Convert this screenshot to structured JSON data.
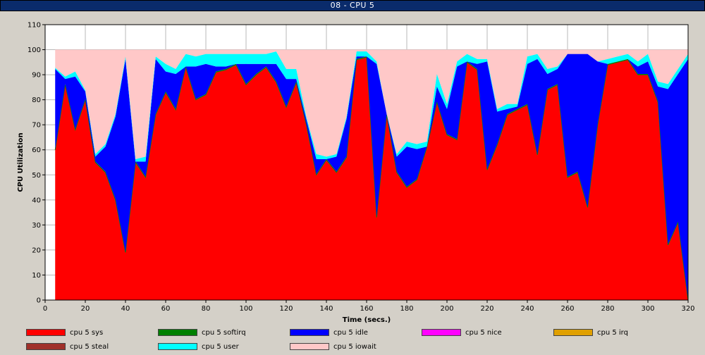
{
  "window": {
    "title": "08 - CPU 5"
  },
  "chart_data": {
    "type": "area",
    "title": "",
    "xlabel": "Time (secs.)",
    "ylabel": "CPU Utilization",
    "xlim": [
      0,
      320
    ],
    "ylim": [
      0,
      110
    ],
    "xticks": [
      0,
      20,
      40,
      60,
      80,
      100,
      120,
      140,
      160,
      180,
      200,
      220,
      240,
      260,
      280,
      300,
      320
    ],
    "yticks": [
      0,
      10,
      20,
      30,
      40,
      50,
      60,
      70,
      80,
      90,
      100,
      110
    ],
    "grid": true,
    "stacked": true,
    "x": [
      5,
      10,
      15,
      20,
      25,
      30,
      35,
      40,
      45,
      50,
      55,
      60,
      65,
      70,
      75,
      80,
      85,
      90,
      95,
      100,
      105,
      110,
      115,
      120,
      125,
      130,
      135,
      140,
      145,
      150,
      155,
      160,
      165,
      170,
      175,
      180,
      185,
      190,
      195,
      200,
      205,
      210,
      215,
      220,
      225,
      230,
      235,
      240,
      245,
      250,
      255,
      260,
      265,
      270,
      275,
      280,
      285,
      290,
      295,
      300,
      305,
      310,
      315,
      320
    ],
    "series": [
      {
        "name": "cpu 5 sys",
        "color": "#ff0000",
        "values": [
          60,
          86,
          68,
          80,
          55,
          51,
          40,
          19,
          55,
          49,
          74,
          83,
          76,
          93,
          80,
          82,
          91,
          92,
          94,
          86,
          90,
          93,
          87,
          77,
          87,
          70,
          50,
          56,
          51,
          57,
          96,
          97,
          33,
          74,
          51,
          45,
          48,
          61,
          79,
          66,
          64,
          95,
          92,
          52,
          62,
          74,
          76,
          78,
          58,
          84,
          86,
          49,
          51,
          37,
          70,
          94,
          95,
          96,
          90,
          90,
          79,
          22,
          31,
          0
        ]
      },
      {
        "name": "cpu 5 softirq",
        "color": "#008000",
        "values": [
          0.3,
          0.3,
          0.3,
          0.3,
          0.3,
          0.3,
          0.3,
          0.3,
          0.3,
          0.3,
          0.3,
          0.3,
          0.3,
          0.3,
          0.3,
          0.3,
          0.3,
          0.3,
          0.3,
          0.3,
          0.3,
          0.3,
          0.3,
          0.3,
          0.3,
          0.3,
          0.3,
          0.3,
          0.3,
          0.3,
          0.3,
          0.3,
          0.3,
          0.3,
          0.3,
          0.3,
          0.3,
          0.3,
          0.3,
          0.3,
          0.3,
          0.3,
          0.3,
          0.3,
          0.3,
          0.3,
          0.3,
          0.3,
          0.3,
          0.3,
          0.3,
          0.3,
          0.3,
          0.3,
          0.3,
          0.3,
          0.3,
          0.3,
          0.3,
          0.3,
          0.3,
          0.3,
          0.3,
          0.3
        ]
      },
      {
        "name": "cpu 5 idle",
        "color": "#0000ff",
        "values": [
          32,
          2,
          21,
          3,
          2,
          10,
          33,
          77,
          0,
          6,
          22,
          8,
          14,
          0,
          13,
          12,
          2,
          1,
          0,
          8,
          4,
          1,
          7,
          11,
          1,
          2,
          6,
          0,
          6,
          15,
          1,
          0,
          61,
          0,
          6,
          16,
          12,
          0,
          6,
          10,
          29,
          0,
          2,
          43,
          13,
          2,
          1,
          16,
          38,
          6,
          6,
          49,
          47,
          61,
          25,
          0,
          0,
          0,
          3,
          5,
          6,
          62,
          59,
          96
        ]
      },
      {
        "name": "cpu 5 nice",
        "color": "#ff00ff",
        "values": [
          0,
          0,
          0,
          0,
          0,
          0,
          0,
          0,
          0,
          0,
          0,
          0,
          0,
          0,
          0,
          0,
          0,
          0,
          0,
          0,
          0,
          0,
          0,
          0,
          0,
          0,
          0,
          0,
          0,
          0,
          0,
          0,
          0,
          0,
          0,
          0,
          0,
          0,
          0,
          0,
          0,
          0,
          0,
          0,
          0,
          0,
          0,
          0,
          0,
          0,
          0,
          0,
          0,
          0,
          0,
          0,
          0,
          0,
          0,
          0,
          0,
          0,
          0,
          0
        ]
      },
      {
        "name": "cpu 5 irq",
        "color": "#e0a000",
        "values": [
          0,
          0,
          0,
          0,
          0,
          0,
          0,
          0,
          0,
          0,
          0,
          0,
          0,
          0,
          0,
          0,
          0,
          0,
          0,
          0,
          0,
          0,
          0,
          0,
          0,
          0,
          0,
          0,
          0,
          0,
          0,
          0,
          0,
          0,
          0,
          0,
          0,
          0,
          0,
          0,
          0,
          0,
          0,
          0,
          0,
          0,
          0,
          0,
          0,
          0,
          0,
          0,
          0,
          0,
          0,
          0,
          0,
          0,
          0,
          0,
          0,
          0,
          0,
          0
        ]
      },
      {
        "name": "cpu 5 steal",
        "color": "#a0302a",
        "values": [
          0,
          0,
          0,
          0,
          0,
          0,
          0,
          0,
          0,
          0,
          0,
          0,
          0,
          0,
          0,
          0,
          0,
          0,
          0,
          0,
          0,
          0,
          0,
          0,
          0,
          0,
          0,
          0,
          0,
          0,
          0,
          0,
          0,
          0,
          0,
          0,
          0,
          0,
          0,
          0,
          0,
          0,
          0,
          0,
          0,
          0,
          0,
          0,
          0,
          0,
          0,
          0,
          0,
          0,
          0,
          0,
          0,
          0,
          0,
          0,
          0,
          0,
          0,
          0
        ]
      },
      {
        "name": "cpu 5 user",
        "color": "#00ffff",
        "values": [
          0.5,
          1,
          2,
          0.5,
          1,
          1,
          1,
          1,
          1,
          2,
          1,
          3,
          2,
          5,
          4,
          4,
          5,
          5,
          4,
          4,
          4,
          4,
          5,
          4,
          4,
          1,
          2,
          1,
          1,
          1,
          2,
          2,
          1,
          0,
          1,
          2,
          2,
          2,
          5,
          2,
          2,
          3,
          2,
          1,
          1,
          2,
          1,
          3,
          2,
          2,
          1,
          0,
          0,
          0,
          0,
          2,
          2,
          2,
          2,
          3,
          2,
          2,
          2,
          2
        ]
      },
      {
        "name": "cpu 5 iowait",
        "color": "#ffc8c8",
        "values": [
          7.2,
          10.7,
          8.7,
          16.2,
          41.7,
          37.7,
          25.7,
          2.7,
          43.7,
          42.7,
          2.7,
          5.7,
          7.7,
          1.7,
          2.7,
          1.7,
          1.7,
          1.7,
          1.7,
          1.7,
          1.7,
          1.7,
          0.7,
          7.7,
          7.7,
          26.7,
          41.7,
          42.7,
          41.7,
          26.7,
          0.7,
          0.7,
          4.7,
          25.7,
          41.7,
          36.7,
          37.7,
          36.7,
          9.7,
          21.7,
          4.7,
          1.7,
          3.7,
          3.7,
          23.7,
          21.7,
          21.7,
          2.7,
          1.7,
          7.7,
          6.7,
          1.7,
          1.7,
          1.7,
          4.7,
          3.7,
          2.7,
          1.7,
          4.7,
          1.7,
          12.7,
          13.7,
          7.7,
          1.7
        ]
      }
    ]
  }
}
